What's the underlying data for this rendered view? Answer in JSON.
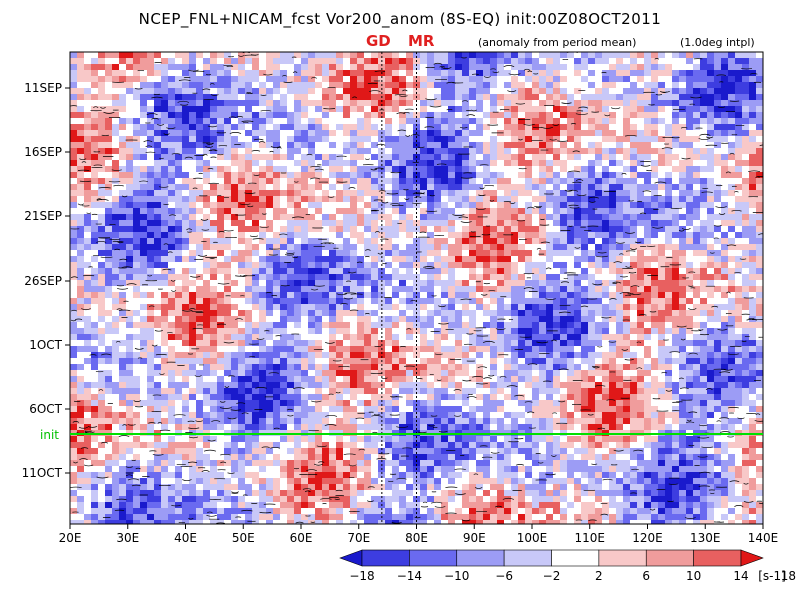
{
  "chart_data": {
    "type": "heatmap",
    "title": "NCEP_FNL+NICAM_fcst Vor200_anom (8S-EQ) init:00Z08OCT2011",
    "subtitle_left": "(anomaly from period mean)",
    "subtitle_right": "(1.0deg intpl)",
    "markers": [
      {
        "label": "GD",
        "lon": 74
      },
      {
        "label": "MR",
        "lon": 80
      }
    ],
    "init_label": "init",
    "x_ticks": [
      "20E",
      "30E",
      "40E",
      "50E",
      "60E",
      "70E",
      "80E",
      "90E",
      "100E",
      "110E",
      "120E",
      "130E",
      "140E"
    ],
    "x_range": [
      20,
      140
    ],
    "y_ticks": [
      "11SEP",
      "16SEP",
      "21SEP",
      "26SEP",
      "1OCT",
      "6OCT",
      "11OCT"
    ],
    "colorbar": {
      "labels": [
        "-18",
        "-14",
        "-10",
        "-6",
        "-2",
        "2",
        "6",
        "10",
        "14",
        "18"
      ],
      "unit": "[s-1]",
      "colors": [
        "#1a1acc",
        "#3d3de0",
        "#6a6af0",
        "#9c9cf5",
        "#c8c8f8",
        "#ffffff",
        "#f8c8c8",
        "#f09c9c",
        "#e86060",
        "#e01818"
      ]
    }
  }
}
